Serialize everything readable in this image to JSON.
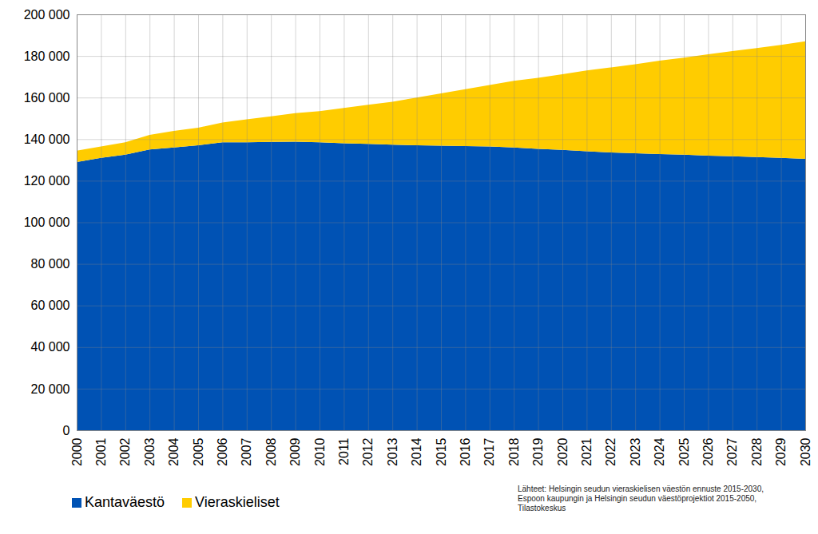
{
  "chart_data": {
    "type": "area",
    "stacked": true,
    "grid": true,
    "legend": "bottom-left",
    "x": [
      2000,
      2001,
      2002,
      2003,
      2004,
      2005,
      2006,
      2007,
      2008,
      2009,
      2010,
      2011,
      2012,
      2013,
      2014,
      2015,
      2016,
      2017,
      2018,
      2019,
      2020,
      2021,
      2022,
      2023,
      2024,
      2025,
      2026,
      2027,
      2028,
      2029,
      2030
    ],
    "xlim": [
      2000,
      2030
    ],
    "xticks": [
      2000,
      2001,
      2002,
      2003,
      2004,
      2005,
      2006,
      2007,
      2008,
      2009,
      2010,
      2011,
      2012,
      2013,
      2014,
      2015,
      2016,
      2017,
      2018,
      2019,
      2020,
      2021,
      2022,
      2023,
      2024,
      2025,
      2026,
      2027,
      2028,
      2029,
      2030
    ],
    "ylim": [
      0,
      200000
    ],
    "yticks": [
      0,
      {
        "value": 20000,
        "label": "20 000"
      },
      {
        "value": 40000,
        "label": "40 000"
      },
      {
        "value": 60000,
        "label": "60 000"
      },
      {
        "value": 80000,
        "label": "80 000"
      },
      {
        "value": 100000,
        "label": "100 000"
      },
      {
        "value": 120000,
        "label": "120 000"
      },
      {
        "value": 140000,
        "label": "140 000"
      },
      {
        "value": 160000,
        "label": "160 000"
      },
      {
        "value": 180000,
        "label": "180 000"
      },
      {
        "value": 200000,
        "label": "200 000"
      }
    ],
    "series": [
      {
        "name": "Kantaväestö",
        "color": "#0052b4",
        "values": [
          129000,
          131000,
          132500,
          135000,
          136000,
          137000,
          138500,
          138500,
          138700,
          138800,
          138500,
          138000,
          137700,
          137300,
          137000,
          136900,
          136700,
          136500,
          136000,
          135300,
          134800,
          134200,
          133600,
          133200,
          132800,
          132500,
          132100,
          131800,
          131400,
          131000,
          130500
        ]
      },
      {
        "name": "Vieraskieliset",
        "color": "#ffcc00",
        "values": [
          5500,
          5500,
          6000,
          7000,
          8000,
          8500,
          9500,
          11000,
          12300,
          13700,
          15000,
          17000,
          18800,
          20700,
          23000,
          25100,
          27300,
          29500,
          32000,
          34200,
          36400,
          38800,
          40900,
          42800,
          44900,
          46700,
          48700,
          50500,
          52400,
          54300,
          56500
        ]
      }
    ],
    "caption": [
      "Lähteet: Helsingin seudun vieraskielisen väestön ennuste 2015-2030,",
      "Espoon kaupungin ja Helsingin seudun väestöprojektiot 2015-2050,",
      "Tilastokeskus"
    ]
  }
}
